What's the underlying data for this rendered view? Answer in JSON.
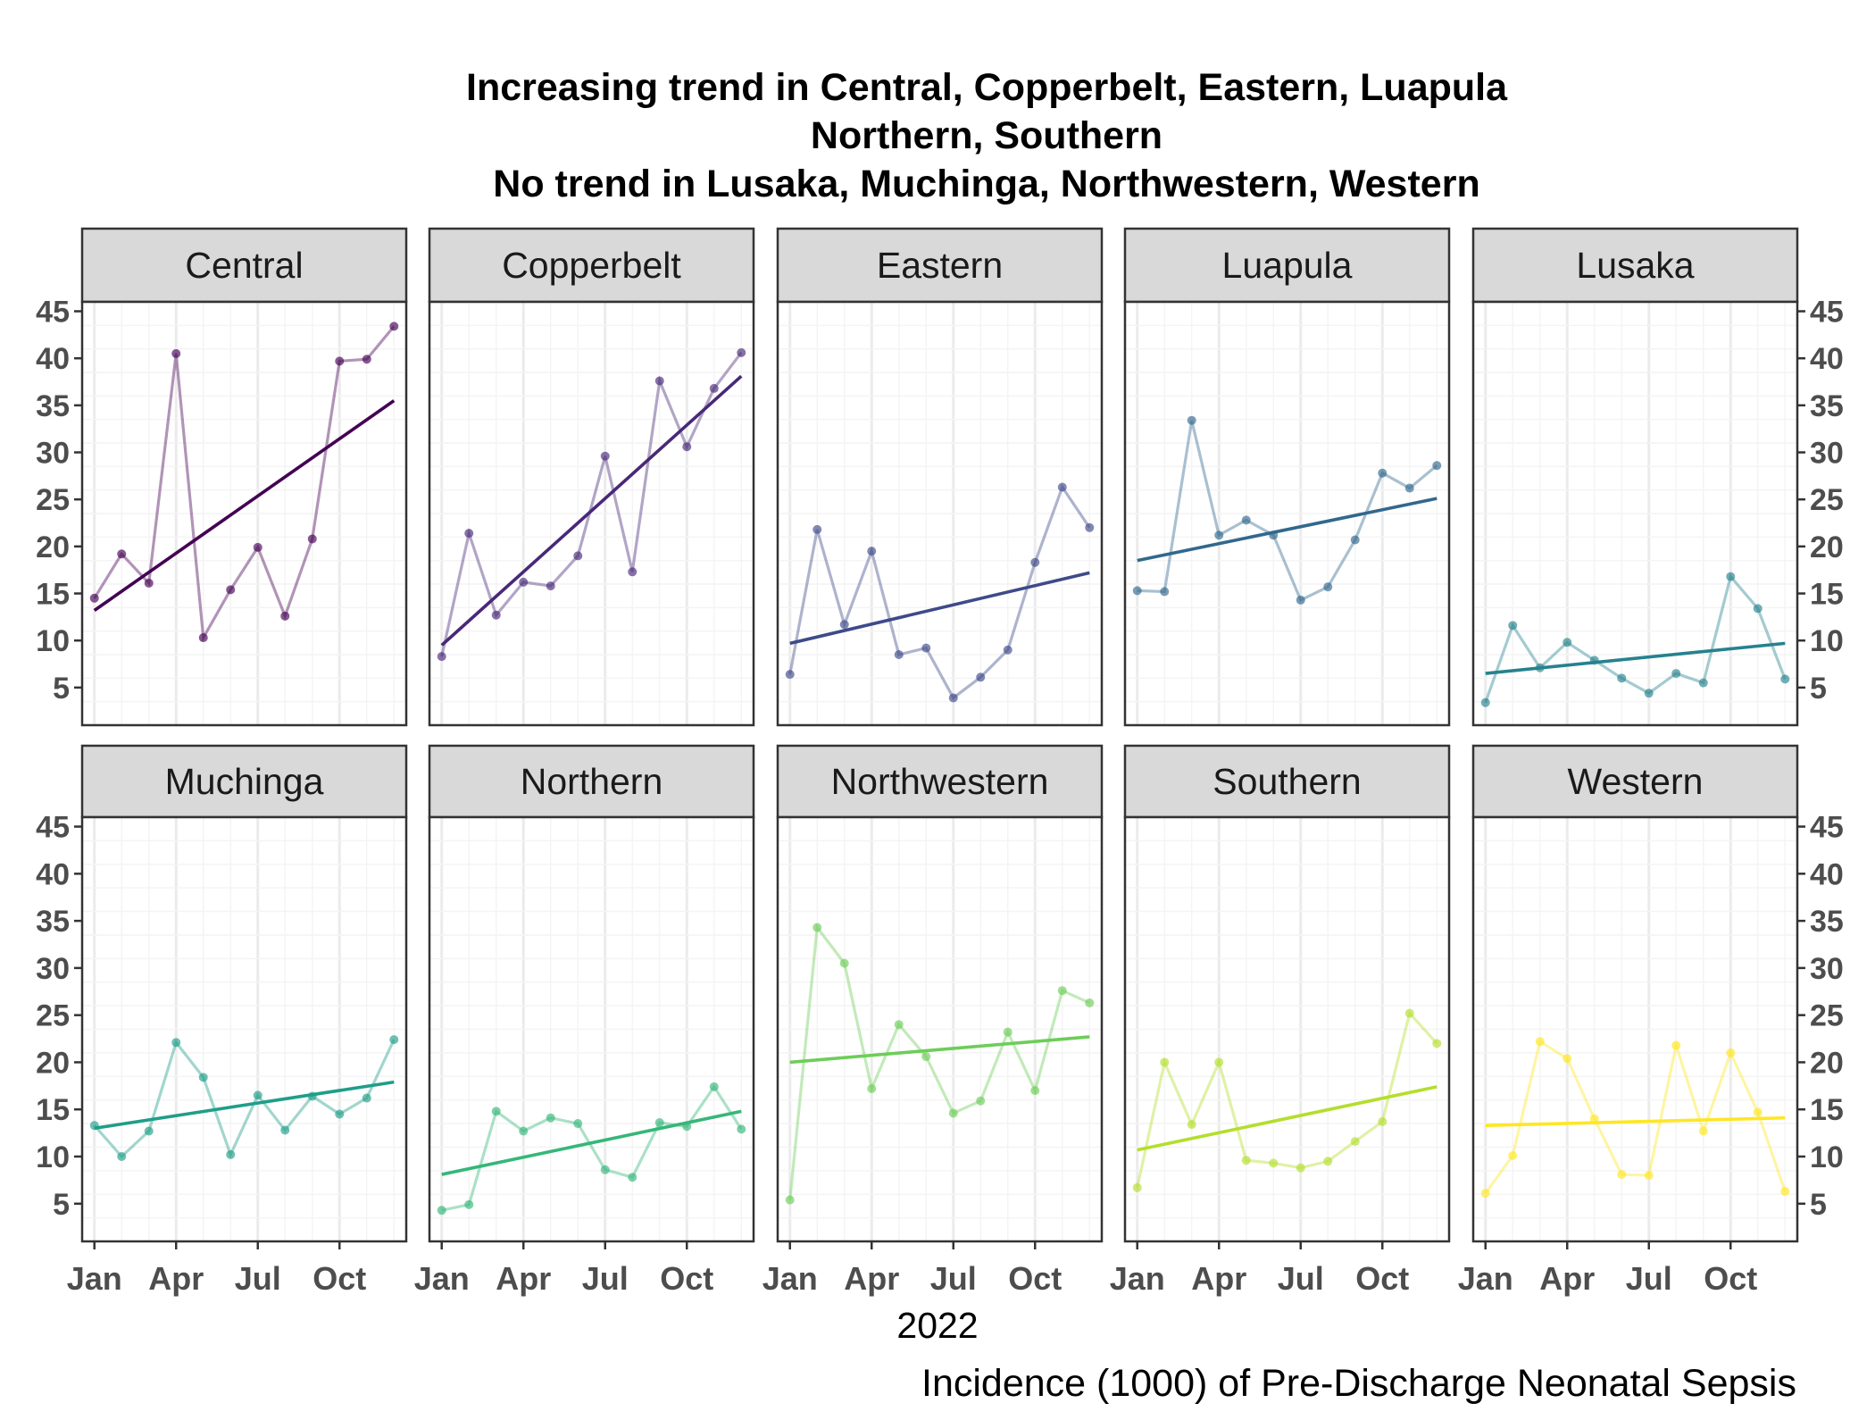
{
  "chart_data": {
    "type": "line",
    "title_lines": [
      "Increasing trend in Central, Copperbelt, Eastern, Luapula",
      "Northern, Southern",
      "No trend in Lusaka, Muchinga, Northwestern, Western"
    ],
    "xlabel": "2022",
    "caption": "Incidence (1000) of Pre-Discharge Neonatal Sepsis",
    "x_ticks": [
      "Jan",
      "Apr",
      "Jul",
      "Oct"
    ],
    "x_tick_months": [
      1,
      4,
      7,
      10
    ],
    "months": [
      1,
      2,
      3,
      4,
      5,
      6,
      7,
      8,
      9,
      10,
      11,
      12
    ],
    "y_ticks": [
      5,
      10,
      15,
      20,
      25,
      30,
      35,
      40,
      45
    ],
    "ylim": [
      1,
      46
    ],
    "grid": true,
    "facets": [
      {
        "name": "Central",
        "color": "#440154",
        "values": [
          14.5,
          19.2,
          16.1,
          40.5,
          10.3,
          15.4,
          19.9,
          12.6,
          20.8,
          39.7,
          39.9,
          43.4
        ],
        "trend": [
          13.2,
          35.5
        ]
      },
      {
        "name": "Copperbelt",
        "color": "#482878",
        "values": [
          8.3,
          21.4,
          12.7,
          16.2,
          15.8,
          19.0,
          29.6,
          17.3,
          37.6,
          30.6,
          36.8,
          40.6
        ],
        "trend": [
          9.5,
          38.1
        ]
      },
      {
        "name": "Eastern",
        "color": "#3E4A89",
        "values": [
          6.4,
          21.8,
          11.7,
          19.5,
          8.5,
          9.2,
          3.9,
          6.1,
          9.0,
          18.3,
          26.3,
          22.0
        ],
        "trend": [
          9.7,
          17.2
        ]
      },
      {
        "name": "Luapula",
        "color": "#31688E",
        "values": [
          15.3,
          15.2,
          33.4,
          21.2,
          22.8,
          21.2,
          14.3,
          15.7,
          20.7,
          27.8,
          26.2,
          28.6
        ],
        "trend": [
          18.5,
          25.1
        ]
      },
      {
        "name": "Lusaka",
        "color": "#26828E",
        "values": [
          3.4,
          11.6,
          7.1,
          9.8,
          7.9,
          6.0,
          4.4,
          6.5,
          5.5,
          16.8,
          13.4,
          5.9
        ],
        "trend": [
          6.5,
          9.7
        ]
      },
      {
        "name": "Muchinga",
        "color": "#1F9E89",
        "values": [
          13.3,
          10.0,
          12.7,
          22.1,
          18.4,
          10.2,
          16.5,
          12.8,
          16.4,
          14.5,
          16.2,
          22.4
        ],
        "trend": [
          13.0,
          17.9
        ]
      },
      {
        "name": "Northern",
        "color": "#35B779",
        "values": [
          4.3,
          4.9,
          14.8,
          12.7,
          14.1,
          13.5,
          8.6,
          7.8,
          13.6,
          13.2,
          17.4,
          12.9
        ],
        "trend": [
          8.1,
          14.8
        ]
      },
      {
        "name": "Northwestern",
        "color": "#6DCD59",
        "values": [
          5.4,
          34.3,
          30.5,
          17.2,
          24.0,
          20.6,
          14.6,
          15.9,
          23.2,
          17.0,
          27.6,
          26.3
        ],
        "trend": [
          20.0,
          22.7
        ]
      },
      {
        "name": "Southern",
        "color": "#B4DE2C",
        "values": [
          6.7,
          20.0,
          13.4,
          20.0,
          9.6,
          9.3,
          8.8,
          9.5,
          11.6,
          13.7,
          25.2,
          22.0
        ],
        "trend": [
          10.7,
          17.4
        ]
      },
      {
        "name": "Western",
        "color": "#FDE725",
        "values": [
          6.1,
          10.1,
          22.2,
          20.4,
          14.0,
          8.1,
          8.0,
          21.8,
          12.7,
          21.0,
          14.7,
          6.3
        ],
        "trend": [
          13.3,
          14.1
        ]
      }
    ]
  }
}
